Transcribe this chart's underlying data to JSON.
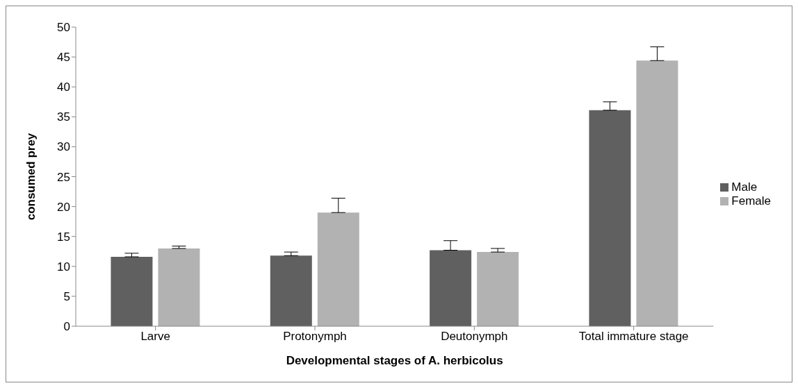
{
  "chart_data": {
    "type": "bar",
    "xlabel": "Developmental stages of A. herbicolus",
    "ylabel": "consumed prey",
    "categories": [
      "Larve",
      "Protonymph",
      "Deutonymph",
      "Total immature stage"
    ],
    "series": [
      {
        "name": "Male",
        "color": "#606060",
        "values": [
          11.6,
          11.8,
          12.7,
          36.1
        ],
        "errors": [
          [
            11.6,
            12.2
          ],
          [
            11.8,
            12.4
          ],
          [
            12.7,
            14.3
          ],
          [
            36.1,
            37.5
          ]
        ]
      },
      {
        "name": "Female",
        "color": "#b2b2b2",
        "values": [
          13.0,
          19.0,
          12.4,
          44.4
        ],
        "errors": [
          [
            13.0,
            13.4
          ],
          [
            19.0,
            21.4
          ],
          [
            12.4,
            13.0
          ],
          [
            44.4,
            46.7
          ]
        ]
      }
    ],
    "ylim": [
      0,
      50
    ],
    "yticks": [
      0,
      5,
      10,
      15,
      20,
      25,
      30,
      35,
      40,
      45,
      50
    ],
    "grid": false,
    "legend": "right"
  }
}
